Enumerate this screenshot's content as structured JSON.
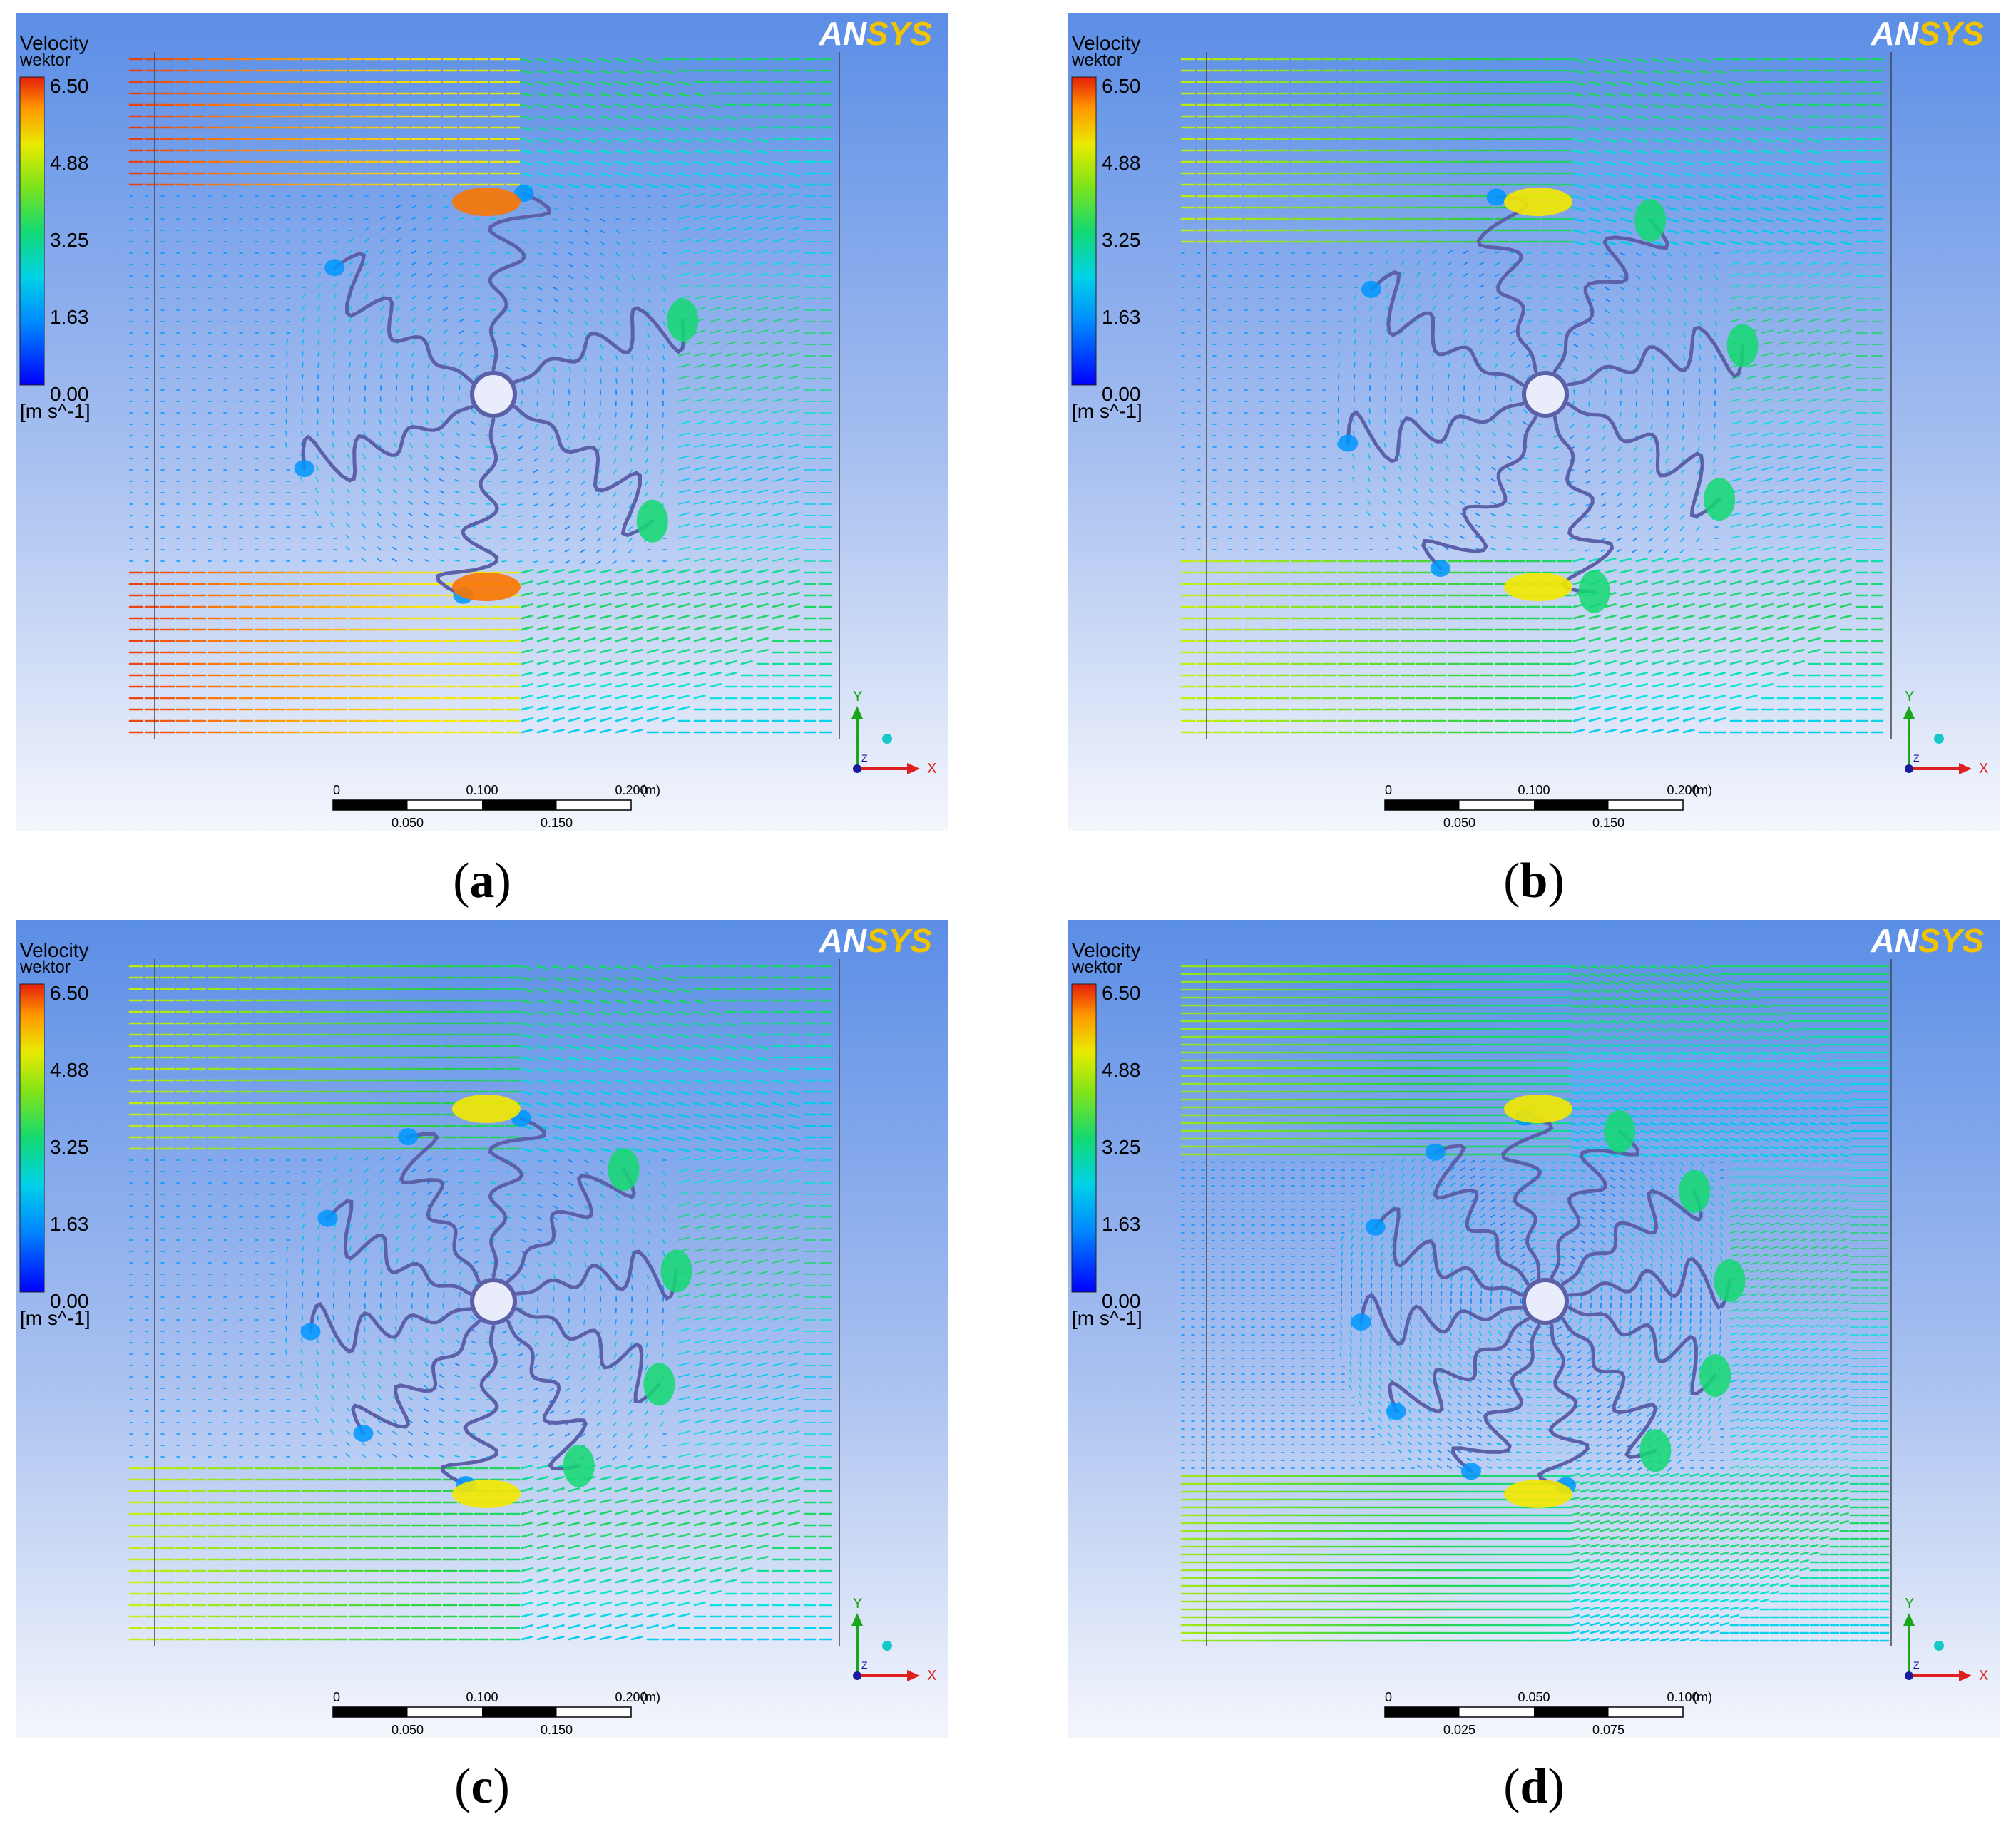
{
  "brand": "ANSYS",
  "brand_colors": {
    "an": "#ffffff",
    "sys": "#f2c400"
  },
  "legend": {
    "title_line1": "Velocity",
    "title_line2": "wektor",
    "ticks": [
      "6.50",
      "4.88",
      "3.25",
      "1.63",
      "0.00"
    ],
    "unit": "[m s^-1]",
    "range": [
      0.0,
      6.5
    ]
  },
  "axis_triad": {
    "y": "Y",
    "x": "X",
    "z": "Z"
  },
  "panels": [
    {
      "id": "a",
      "caption": "a",
      "jets": "strong",
      "blades": 6,
      "scale": {
        "top_labels": [
          "0",
          "0.100",
          "0.200"
        ],
        "bottom_labels": [
          "0.050",
          "0.150"
        ],
        "unit": "(m)"
      }
    },
    {
      "id": "b",
      "caption": "b",
      "jets": "medium",
      "blades": 8,
      "scale": {
        "top_labels": [
          "0",
          "0.100",
          "0.200"
        ],
        "bottom_labels": [
          "0.050",
          "0.150"
        ],
        "unit": "(m)"
      }
    },
    {
      "id": "c",
      "caption": "c",
      "jets": "medium",
      "blades": 10,
      "scale": {
        "top_labels": [
          "0",
          "0.100",
          "0.200"
        ],
        "bottom_labels": [
          "0.050",
          "0.150"
        ],
        "unit": "(m)"
      }
    },
    {
      "id": "d",
      "caption": "d",
      "jets": "dense",
      "blades": 12,
      "scale": {
        "top_labels": [
          "0",
          "0.050",
          "0.100"
        ],
        "bottom_labels": [
          "0.025",
          "0.075"
        ],
        "unit": "(m)"
      }
    }
  ]
}
